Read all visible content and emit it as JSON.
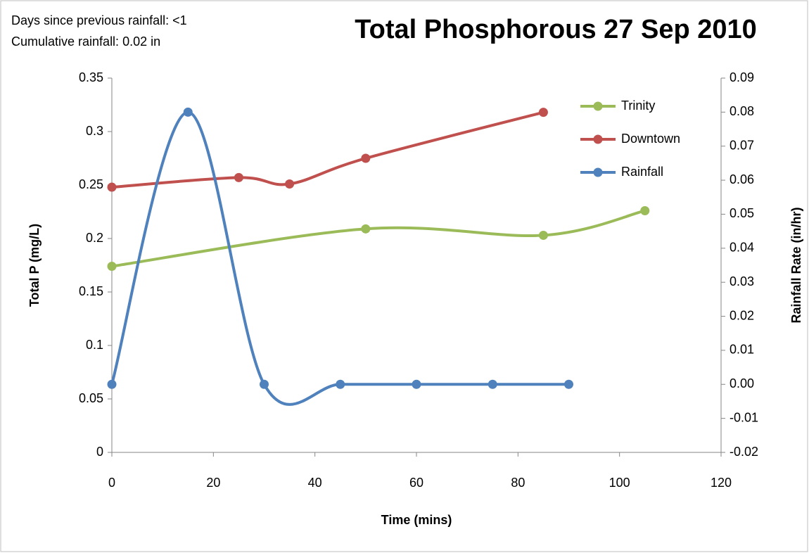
{
  "chart_data": {
    "type": "line",
    "title": "Total Phosphorous 27 Sep 2010",
    "annotations": [
      "Days since previous rainfall: <1",
      "Cumulative rainfall: 0.02 in"
    ],
    "xlabel": "Time (mins)",
    "ylabel": "Total P (mg/L)",
    "y2label": "Rainfall Rate (in/hr)",
    "xlim": [
      0,
      120
    ],
    "xticks": [
      0,
      20,
      40,
      60,
      80,
      100,
      120
    ],
    "ylim": [
      0,
      0.35
    ],
    "yticks": [
      0,
      0.05,
      0.1,
      0.15,
      0.2,
      0.25,
      0.3,
      0.35
    ],
    "y2lim": [
      -0.02,
      0.09
    ],
    "y2ticks": [
      {
        "value": -0.02,
        "label": "-0.02"
      },
      {
        "value": -0.01,
        "label": "-0.01"
      },
      {
        "value": 0,
        "label": "0.00"
      },
      {
        "value": 0.01,
        "label": "0.01"
      },
      {
        "value": 0.02,
        "label": "0.02"
      },
      {
        "value": 0.03,
        "label": "0.03"
      },
      {
        "value": 0.04,
        "label": "0.04"
      },
      {
        "value": 0.05,
        "label": "0.05"
      },
      {
        "value": 0.06,
        "label": "0.06"
      },
      {
        "value": 0.07,
        "label": "0.07"
      },
      {
        "value": 0.08,
        "label": "0.08"
      },
      {
        "value": 0.09,
        "label": "0.09"
      }
    ],
    "legend": "top-right",
    "smooth": true,
    "series": [
      {
        "name": "Trinity",
        "color": "#9bbb59",
        "x": [
          0,
          50,
          85,
          105
        ],
        "values": [
          0.174,
          0.209,
          0.203,
          0.226
        ]
      },
      {
        "name": "Downtown",
        "color": "#c0504d",
        "x": [
          0,
          25,
          35,
          50,
          85
        ],
        "values": [
          0.248,
          0.257,
          0.251,
          0.275,
          0.318
        ]
      },
      {
        "name": "Rainfall",
        "color": "#4f81bd",
        "axis": "y2",
        "x": [
          0,
          15,
          30,
          45,
          60,
          75,
          90
        ],
        "values": [
          0,
          0.08,
          0,
          0,
          0,
          0,
          0
        ]
      }
    ]
  }
}
